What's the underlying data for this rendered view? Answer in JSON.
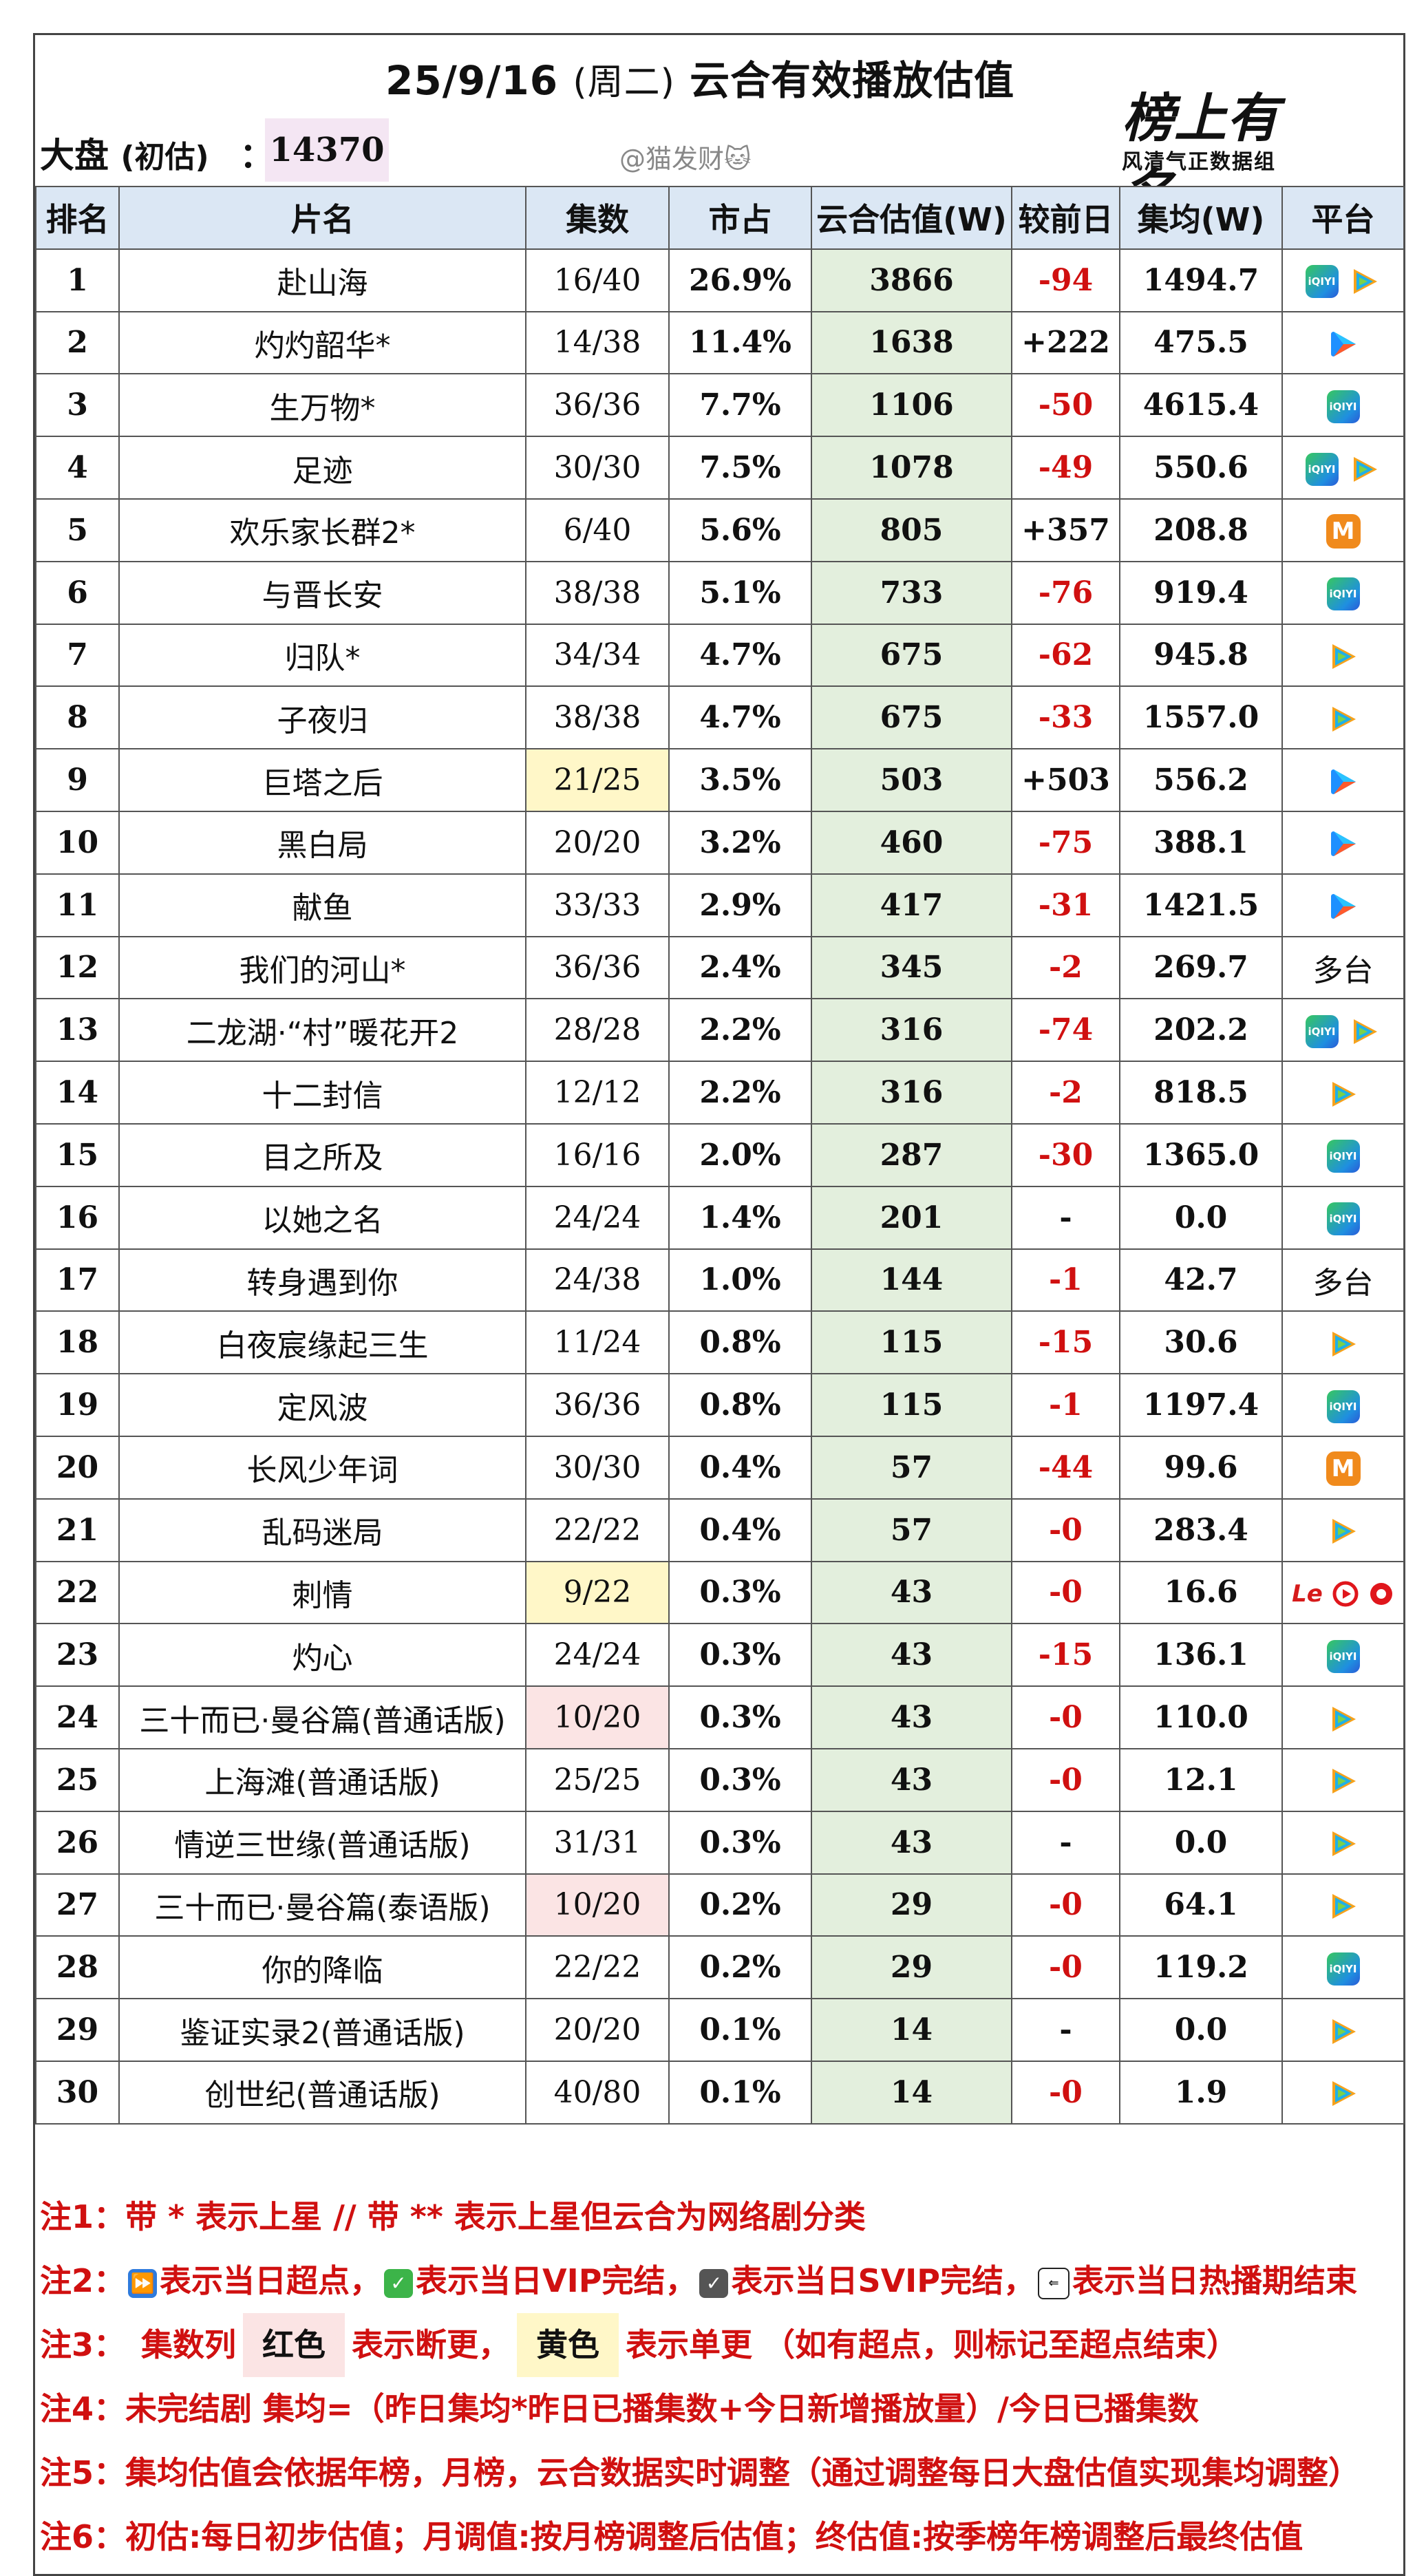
{
  "header": {
    "title_date": "25/9/16",
    "title_weekday": "(周二)",
    "title_text": "云合有效播放估值",
    "market_label": "大盘",
    "market_sub": "(初估)",
    "market_colon": "：",
    "market_value": "14370",
    "watermark": "@猫发财🐱",
    "logo_brand": "榜上有名",
    "logo_sub": "风清气正数据组"
  },
  "table": {
    "columns": [
      "排名",
      "片名",
      "集数",
      "市占",
      "云合估值(W)",
      "较前日",
      "集均(W)",
      "平台"
    ],
    "rows": [
      {
        "rank": "1",
        "name": "赴山海",
        "eps": "16/40",
        "share": "26.9%",
        "est": "3866",
        "diff": "-94",
        "avg": "1494.7",
        "platforms": [
          "iqiyi",
          "tencent"
        ],
        "eps_hl": ""
      },
      {
        "rank": "2",
        "name": "灼灼韶华*",
        "eps": "14/38",
        "share": "11.4%",
        "est": "1638",
        "diff": "+222",
        "avg": "475.5",
        "platforms": [
          "youku"
        ],
        "eps_hl": ""
      },
      {
        "rank": "3",
        "name": "生万物*",
        "eps": "36/36",
        "share": "7.7%",
        "est": "1106",
        "diff": "-50",
        "avg": "4615.4",
        "platforms": [
          "iqiyi"
        ],
        "eps_hl": ""
      },
      {
        "rank": "4",
        "name": "足迹",
        "eps": "30/30",
        "share": "7.5%",
        "est": "1078",
        "diff": "-49",
        "avg": "550.6",
        "platforms": [
          "iqiyi",
          "tencent"
        ],
        "eps_hl": ""
      },
      {
        "rank": "5",
        "name": "欢乐家长群2*",
        "eps": "6/40",
        "share": "5.6%",
        "est": "805",
        "diff": "+357",
        "avg": "208.8",
        "platforms": [
          "mango"
        ],
        "eps_hl": ""
      },
      {
        "rank": "6",
        "name": "与晋长安",
        "eps": "38/38",
        "share": "5.1%",
        "est": "733",
        "diff": "-76",
        "avg": "919.4",
        "platforms": [
          "iqiyi"
        ],
        "eps_hl": ""
      },
      {
        "rank": "7",
        "name": "归队*",
        "eps": "34/34",
        "share": "4.7%",
        "est": "675",
        "diff": "-62",
        "avg": "945.8",
        "platforms": [
          "tencent"
        ],
        "eps_hl": ""
      },
      {
        "rank": "8",
        "name": "子夜归",
        "eps": "38/38",
        "share": "4.7%",
        "est": "675",
        "diff": "-33",
        "avg": "1557.0",
        "platforms": [
          "tencent"
        ],
        "eps_hl": ""
      },
      {
        "rank": "9",
        "name": "巨塔之后",
        "eps": "21/25",
        "share": "3.5%",
        "est": "503",
        "diff": "+503",
        "avg": "556.2",
        "platforms": [
          "youku"
        ],
        "eps_hl": "yellow"
      },
      {
        "rank": "10",
        "name": "黑白局",
        "eps": "20/20",
        "share": "3.2%",
        "est": "460",
        "diff": "-75",
        "avg": "388.1",
        "platforms": [
          "youku"
        ],
        "eps_hl": ""
      },
      {
        "rank": "11",
        "name": "献鱼",
        "eps": "33/33",
        "share": "2.9%",
        "est": "417",
        "diff": "-31",
        "avg": "1421.5",
        "platforms": [
          "youku"
        ],
        "eps_hl": ""
      },
      {
        "rank": "12",
        "name": "我们的河山*",
        "eps": "36/36",
        "share": "2.4%",
        "est": "345",
        "diff": "-2",
        "avg": "269.7",
        "platforms": [
          "multi"
        ],
        "eps_hl": ""
      },
      {
        "rank": "13",
        "name": "二龙湖·“村”暖花开2",
        "eps": "28/28",
        "share": "2.2%",
        "est": "316",
        "diff": "-74",
        "avg": "202.2",
        "platforms": [
          "iqiyi",
          "tencent"
        ],
        "eps_hl": ""
      },
      {
        "rank": "14",
        "name": "十二封信",
        "eps": "12/12",
        "share": "2.2%",
        "est": "316",
        "diff": "-2",
        "avg": "818.5",
        "platforms": [
          "tencent"
        ],
        "eps_hl": ""
      },
      {
        "rank": "15",
        "name": "目之所及",
        "eps": "16/16",
        "share": "2.0%",
        "est": "287",
        "diff": "-30",
        "avg": "1365.0",
        "platforms": [
          "iqiyi"
        ],
        "eps_hl": ""
      },
      {
        "rank": "16",
        "name": "以她之名",
        "eps": "24/24",
        "share": "1.4%",
        "est": "201",
        "diff": "-",
        "avg": "0.0",
        "platforms": [
          "iqiyi"
        ],
        "eps_hl": ""
      },
      {
        "rank": "17",
        "name": "转身遇到你",
        "eps": "24/38",
        "share": "1.0%",
        "est": "144",
        "diff": "-1",
        "avg": "42.7",
        "platforms": [
          "multi"
        ],
        "eps_hl": ""
      },
      {
        "rank": "18",
        "name": "白夜宸缘起三生",
        "eps": "11/24",
        "share": "0.8%",
        "est": "115",
        "diff": "-15",
        "avg": "30.6",
        "platforms": [
          "tencent"
        ],
        "eps_hl": ""
      },
      {
        "rank": "19",
        "name": "定风波",
        "eps": "36/36",
        "share": "0.8%",
        "est": "115",
        "diff": "-1",
        "avg": "1197.4",
        "platforms": [
          "iqiyi"
        ],
        "eps_hl": ""
      },
      {
        "rank": "20",
        "name": "长风少年词",
        "eps": "30/30",
        "share": "0.4%",
        "est": "57",
        "diff": "-44",
        "avg": "99.6",
        "platforms": [
          "mango"
        ],
        "eps_hl": ""
      },
      {
        "rank": "21",
        "name": "乱码迷局",
        "eps": "22/22",
        "share": "0.4%",
        "est": "57",
        "diff": "-0",
        "avg": "283.4",
        "platforms": [
          "tencent"
        ],
        "eps_hl": ""
      },
      {
        "rank": "22",
        "name": "刺情",
        "eps": "9/22",
        "share": "0.3%",
        "est": "43",
        "diff": "-0",
        "avg": "16.6",
        "platforms": [
          "le"
        ],
        "eps_hl": "yellow"
      },
      {
        "rank": "23",
        "name": "灼心",
        "eps": "24/24",
        "share": "0.3%",
        "est": "43",
        "diff": "-15",
        "avg": "136.1",
        "platforms": [
          "iqiyi"
        ],
        "eps_hl": ""
      },
      {
        "rank": "24",
        "name": "三十而已·曼谷篇(普通话版)",
        "eps": "10/20",
        "share": "0.3%",
        "est": "43",
        "diff": "-0",
        "avg": "110.0",
        "platforms": [
          "tencent"
        ],
        "eps_hl": "red"
      },
      {
        "rank": "25",
        "name": "上海滩(普通话版)",
        "eps": "25/25",
        "share": "0.3%",
        "est": "43",
        "diff": "-0",
        "avg": "12.1",
        "platforms": [
          "tencent"
        ],
        "eps_hl": ""
      },
      {
        "rank": "26",
        "name": "情逆三世缘(普通话版)",
        "eps": "31/31",
        "share": "0.3%",
        "est": "43",
        "diff": "-",
        "avg": "0.0",
        "platforms": [
          "tencent"
        ],
        "eps_hl": ""
      },
      {
        "rank": "27",
        "name": "三十而已·曼谷篇(泰语版)",
        "eps": "10/20",
        "share": "0.2%",
        "est": "29",
        "diff": "-0",
        "avg": "64.1",
        "platforms": [
          "tencent"
        ],
        "eps_hl": "red"
      },
      {
        "rank": "28",
        "name": "你的降临",
        "eps": "22/22",
        "share": "0.2%",
        "est": "29",
        "diff": "-0",
        "avg": "119.2",
        "platforms": [
          "iqiyi"
        ],
        "eps_hl": ""
      },
      {
        "rank": "29",
        "name": "鉴证实录2(普通话版)",
        "eps": "20/20",
        "share": "0.1%",
        "est": "14",
        "diff": "-",
        "avg": "0.0",
        "platforms": [
          "tencent"
        ],
        "eps_hl": ""
      },
      {
        "rank": "30",
        "name": "创世纪(普通话版)",
        "eps": "40/80",
        "share": "0.1%",
        "est": "14",
        "diff": "-0",
        "avg": "1.9",
        "platforms": [
          "tencent"
        ],
        "eps_hl": ""
      }
    ]
  },
  "platform_labels": {
    "iqiyi": "iQIYI",
    "mango": "M",
    "le": "Le",
    "multi": "多台"
  },
  "notes": {
    "n1": "注1：带 * 表示上星 // 带 ** 表示上星但云合为网络剧分类",
    "n2_a": "注2：",
    "n2_b": "表示当日超点，",
    "n2_c": "表示当日VIP完结，",
    "n2_d": "表示当日SVIP完结，",
    "n2_e": "表示当日热播期结束",
    "n3_a": "注3：　集数列",
    "n3_red": "红色",
    "n3_b": "表示断更，",
    "n3_yellow": "黄色",
    "n3_c": "表示单更 （如有超点，则标记至超点结束）",
    "n4": "注4：未完结剧 集均=（昨日集均*昨日已播集数+今日新增播放量）/今日已播集数",
    "n5": "注5：集均估值会依据年榜，月榜，云合数据实时调整（通过调整每日大盘估值实现集均调整）",
    "n6": "注6：初估:每日初步估值；月调值:按月榜调整后估值；终估值:按季榜年榜调整后最终估值"
  },
  "colors": {
    "header_bg": "#dbe7f4",
    "estimate_bg": "#e3efdd",
    "negative": "#d01010",
    "single_update": "#fff7c8",
    "break_update": "#fbe4e4"
  }
}
